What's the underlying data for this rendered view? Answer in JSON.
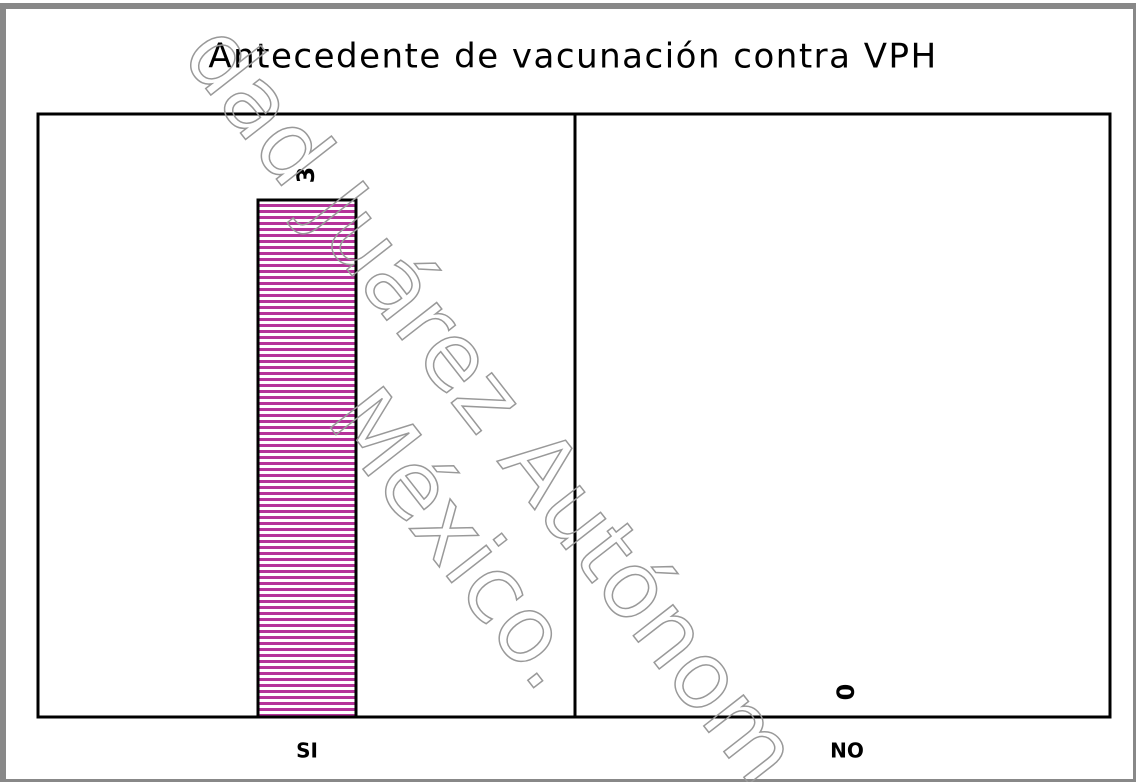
{
  "chart_data": {
    "type": "bar",
    "title": "Antecedente de vacunación contra VPH",
    "categories": [
      "SI",
      "NO"
    ],
    "values": [
      3,
      0
    ],
    "color": "#b5339a"
  },
  "watermark": [
    "dad Juárez Autónom",
    "México."
  ]
}
